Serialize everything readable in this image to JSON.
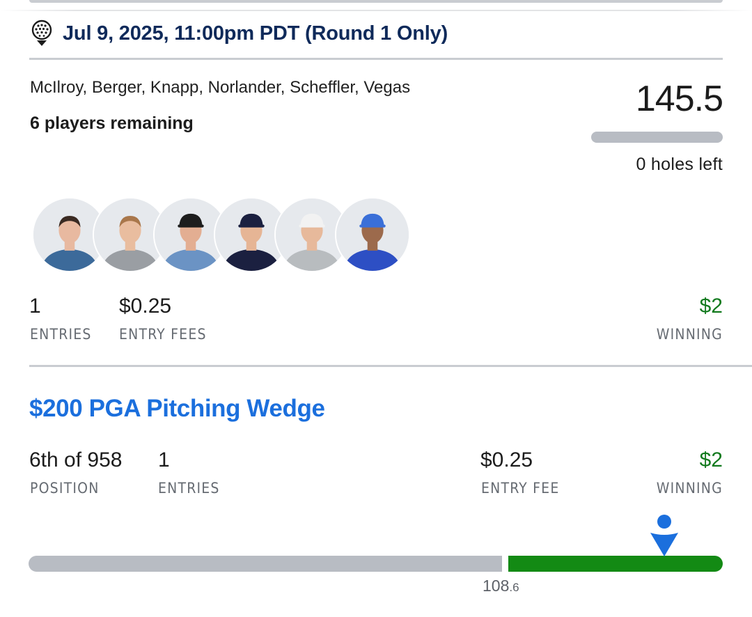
{
  "lineup": {
    "event_title": "Jul 9, 2025, 11:00pm PDT (Round 1 Only)",
    "player_names": "McIlroy, Berger, Knapp, Norlander, Scheffler, Vegas",
    "players_remaining": "6 players remaining",
    "score": "145.5",
    "holes_left": "0 holes left",
    "holes_progress": 1.0,
    "avatars": [
      {
        "name": "McIlroy",
        "icon": "player-avatar-icon",
        "shirt": "#3c6a9a",
        "hat": "none"
      },
      {
        "name": "Berger",
        "icon": "player-avatar-icon",
        "shirt": "#9a9ea3",
        "hat": "none"
      },
      {
        "name": "Knapp",
        "icon": "player-avatar-icon",
        "shirt": "#6b93c4",
        "hat": "#1d1d1d"
      },
      {
        "name": "Norlander",
        "icon": "player-avatar-icon",
        "shirt": "#1b2040",
        "hat": "#1b2040"
      },
      {
        "name": "Scheffler",
        "icon": "player-avatar-icon",
        "shirt": "#b8bcbf",
        "hat": "#f2f2f2"
      },
      {
        "name": "Vegas",
        "icon": "player-avatar-icon",
        "shirt": "#2d4fc4",
        "hat": "#3a6fd8"
      }
    ],
    "stats": {
      "entries_value": "1",
      "entries_label": "ENTRIES",
      "fees_value": "$0.25",
      "fees_label": "ENTRY FEES",
      "winning_value": "$2",
      "winning_label": "WINNING"
    }
  },
  "contest": {
    "name": "$200 PGA Pitching Wedge",
    "position_value": "6th of 958",
    "position_label": "POSITION",
    "entries_value": "1",
    "entries_label": "ENTRIES",
    "fee_value": "$0.25",
    "fee_label": "ENTRY FEE",
    "winning_value": "$2",
    "winning_label": "WINNING",
    "cutoff_int": "108",
    "cutoff_dec": ".6"
  },
  "colors": {
    "accent_blue": "#1b6fdd",
    "title_navy": "#0f2a5a",
    "winning_green": "#127a1e",
    "bar_green": "#138a14",
    "bar_gray": "#b8bcc3"
  }
}
